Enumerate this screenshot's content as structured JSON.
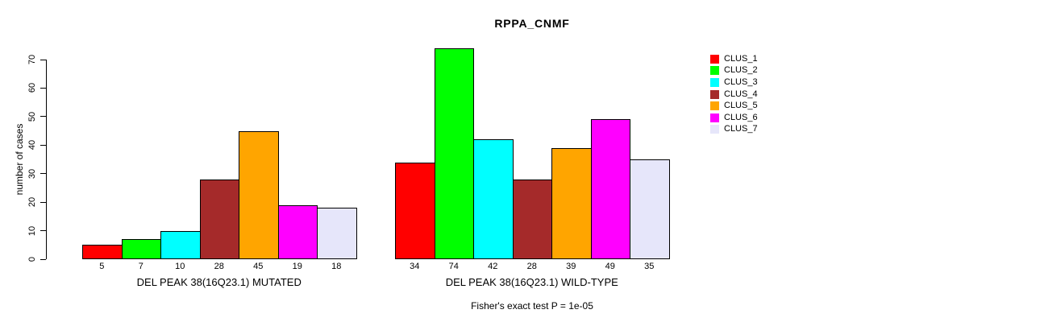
{
  "chart_data": {
    "type": "bar",
    "title": "RPPA_CNMF",
    "ylabel": "number of cases",
    "xlabel": "",
    "categories": [
      "DEL PEAK 38(16Q23.1) MUTATED",
      "DEL PEAK 38(16Q23.1) WILD-TYPE"
    ],
    "series": [
      {
        "name": "CLUS_1",
        "color": "#FF0000",
        "values": [
          5,
          34
        ]
      },
      {
        "name": "CLUS_2",
        "color": "#00FF00",
        "values": [
          7,
          74
        ]
      },
      {
        "name": "CLUS_3",
        "color": "#00FFFF",
        "values": [
          10,
          42
        ]
      },
      {
        "name": "CLUS_4",
        "color": "#A52A2A",
        "values": [
          28,
          28
        ]
      },
      {
        "name": "CLUS_5",
        "color": "#FFA500",
        "values": [
          45,
          39
        ]
      },
      {
        "name": "CLUS_6",
        "color": "#FF00FF",
        "values": [
          19,
          49
        ]
      },
      {
        "name": "CLUS_7",
        "color": "#E6E6FA",
        "values": [
          18,
          35
        ]
      }
    ],
    "bar_value_labels": [
      [
        5,
        7,
        10,
        28,
        45,
        19,
        18
      ],
      [
        34,
        74,
        42,
        28,
        39,
        49,
        35
      ]
    ],
    "yticks": [
      0,
      10,
      20,
      30,
      40,
      50,
      60,
      70
    ],
    "ylim": [
      0,
      74
    ],
    "grid": false,
    "legend_position": "right",
    "annotation": "Fisher's exact test P = 1e-05",
    "background_color": "#FFFFFF",
    "axis_color": "#000000"
  }
}
